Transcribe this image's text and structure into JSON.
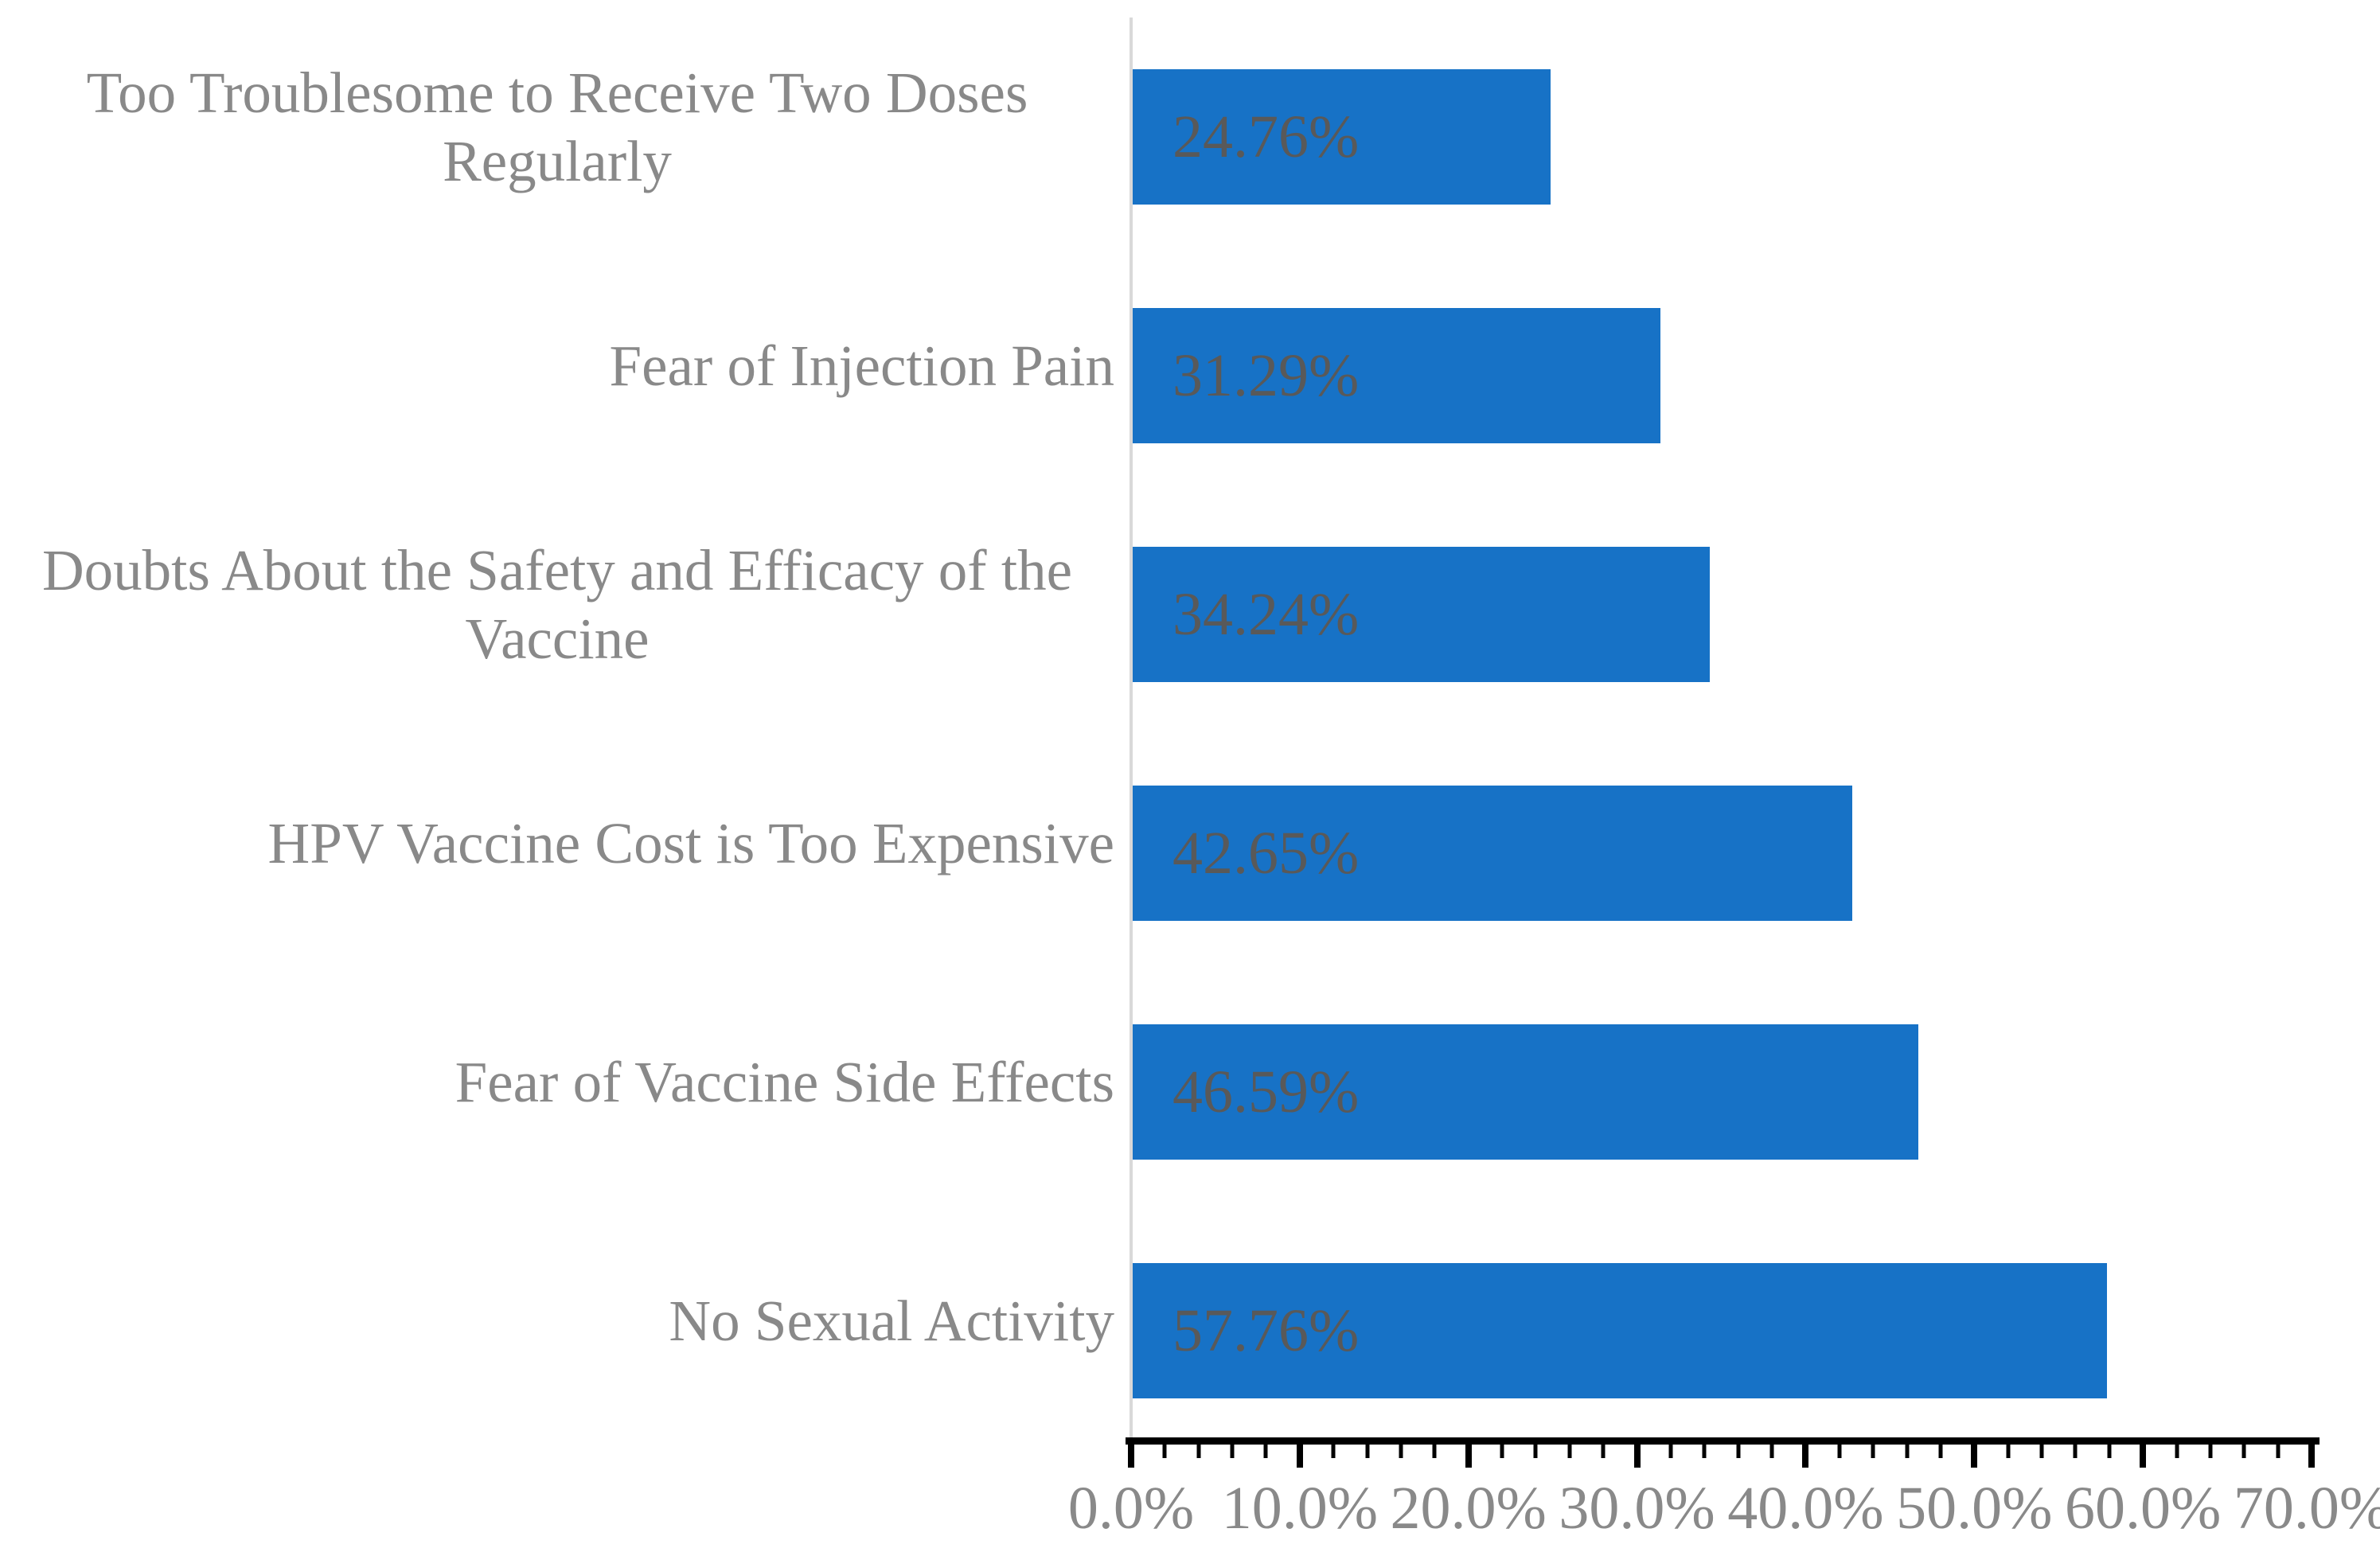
{
  "chart_data": {
    "type": "bar",
    "orientation": "horizontal",
    "title": "",
    "xlabel": "",
    "ylabel": "",
    "categories": [
      "Too Troublesome to Receive Two Doses Regularly",
      "Fear of Injection Pain",
      "Doubts About the Safety and Efficacy of the Vaccine",
      "HPV Vaccine Cost is Too Expensive",
      "Fear of Vaccine Side Effects",
      "No Sexual Activity"
    ],
    "values": [
      24.76,
      31.29,
      34.24,
      42.65,
      46.59,
      57.76
    ],
    "value_labels": [
      "24.76%",
      "31.29%",
      "34.24%",
      "42.65%",
      "46.59%",
      "57.76%"
    ],
    "xlim": [
      0,
      70
    ],
    "x_major_tick_step": 10,
    "x_minor_tick_step": 2,
    "x_tick_labels": [
      "0.0%",
      "10.0%",
      "20.0%",
      "30.0%",
      "40.0%",
      "50.0%",
      "60.0%",
      "70.0%"
    ],
    "grid": false,
    "legend": false,
    "colors": {
      "bar": "#1772C6",
      "data_label": "#595959",
      "axis_text": "#898989",
      "value_axis_line": "#000000",
      "category_axis_line": "#D9D9D9",
      "background": "#FFFFFF"
    }
  }
}
